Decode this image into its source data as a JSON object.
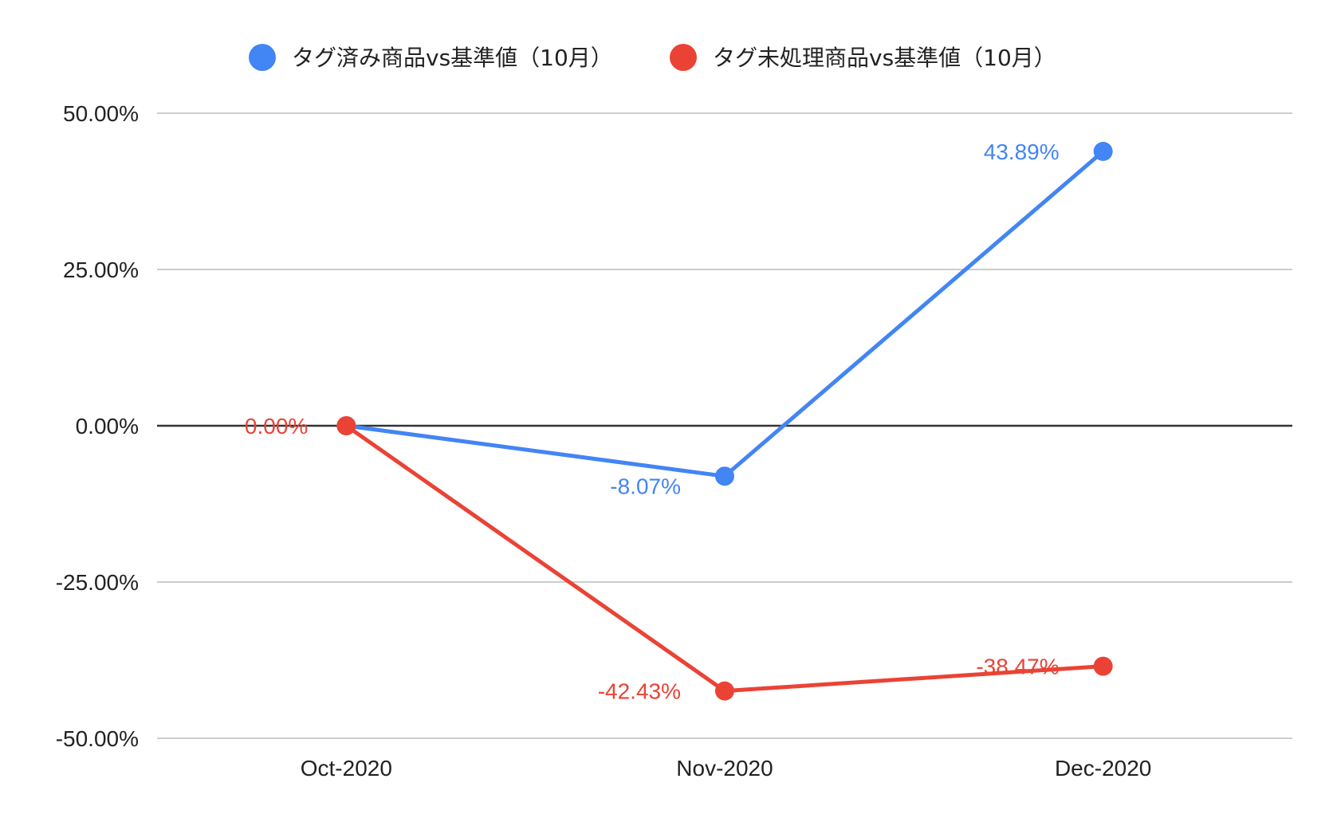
{
  "chart_data": {
    "type": "line",
    "title": "",
    "xlabel": "",
    "ylabel": "",
    "categories": [
      "Oct-2020",
      "Nov-2020",
      "Dec-2020"
    ],
    "ylim": [
      -50,
      50
    ],
    "yticks": [
      50,
      25,
      0,
      -25,
      -50
    ],
    "ytick_labels": [
      "50.00%",
      "25.00%",
      "0.00%",
      "-25.00%",
      "-50.00%"
    ],
    "grid": true,
    "legend_position": "top",
    "series": [
      {
        "name": "タグ済み商品vs基準値（10月）",
        "color": "#4285F4",
        "values": [
          0,
          -8.07,
          43.89
        ],
        "labels": [
          "",
          "-8.07%",
          "43.89%"
        ]
      },
      {
        "name": "タグ未処理商品vs基準値（10月）",
        "color": "#EA4335",
        "values": [
          0,
          -42.43,
          -38.47
        ],
        "labels": [
          "0.00%",
          "-42.43%",
          "-38.47%"
        ]
      }
    ]
  }
}
